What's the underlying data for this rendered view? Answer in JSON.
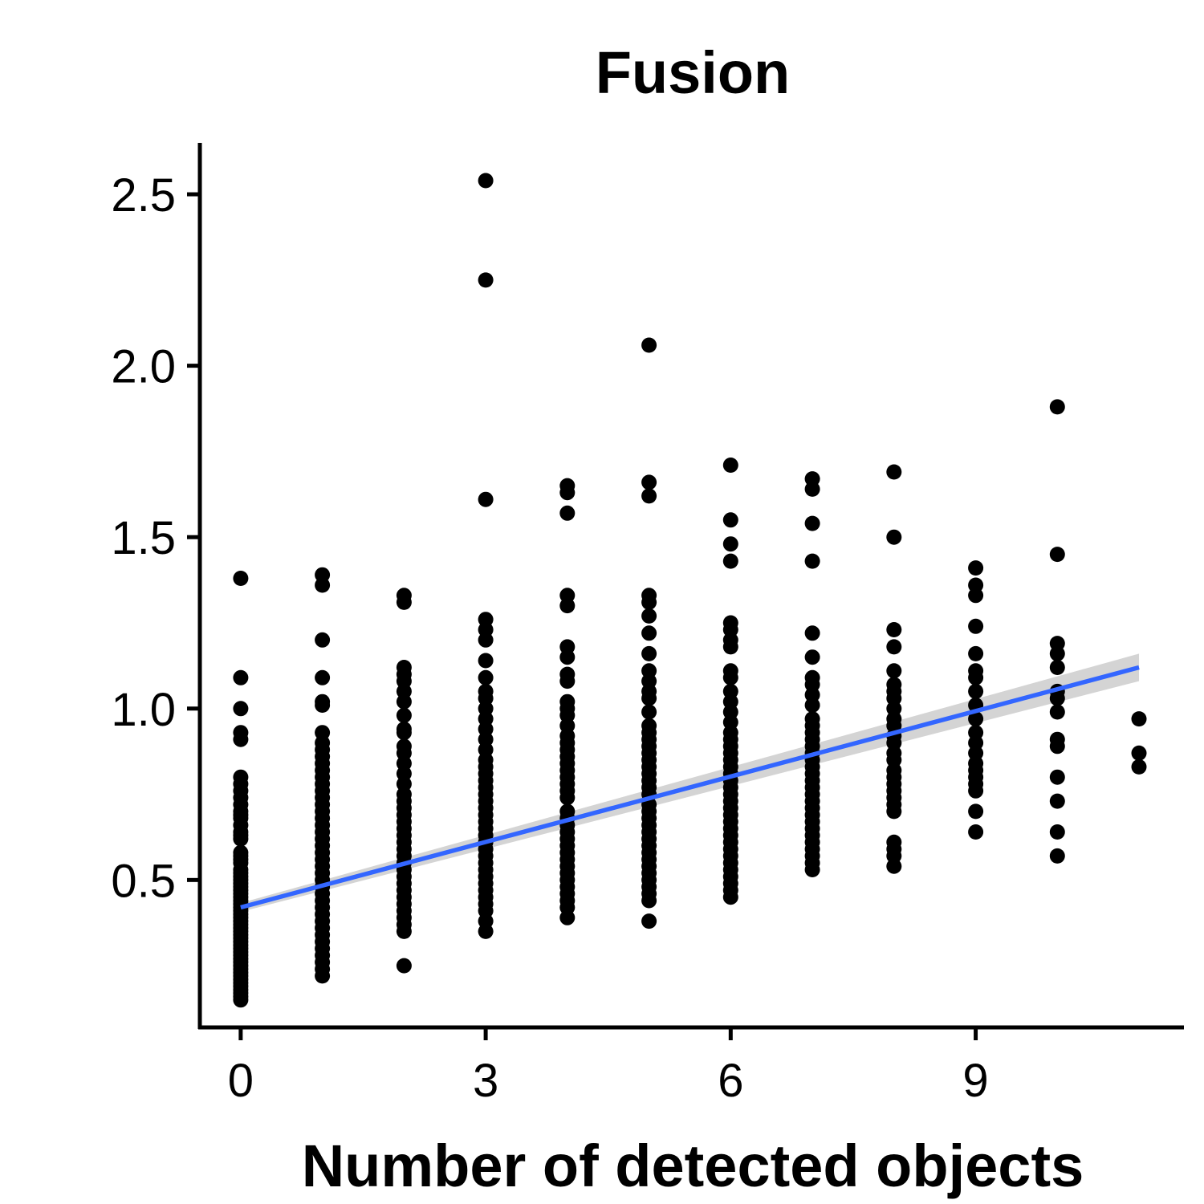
{
  "chart_data": {
    "type": "scatter",
    "title": "Fusion",
    "xlabel": "Number of detected objects",
    "ylabel": "",
    "xlim": [
      -0.5,
      11.55
    ],
    "ylim": [
      0.07,
      2.65
    ],
    "x_ticks": [
      0,
      3,
      6,
      9
    ],
    "x_tick_labels": [
      "0",
      "3",
      "6",
      "9"
    ],
    "y_ticks": [
      0.5,
      1.0,
      1.5,
      2.0,
      2.5
    ],
    "y_tick_labels": [
      "0.5",
      "1.0",
      "1.5",
      "2.0",
      "2.5"
    ],
    "grid": false,
    "legend": "none",
    "colors": {
      "points": "#000000",
      "trend_line": "#3366FF",
      "confidence_band": "#CCCCCC",
      "axis": "#000000"
    },
    "groups": [
      {
        "x": 0,
        "y": [
          1.38,
          1.09,
          1.0,
          0.93,
          0.91,
          0.8,
          0.78,
          0.76,
          0.74,
          0.72,
          0.7,
          0.69,
          0.68,
          0.66,
          0.64,
          0.63,
          0.62,
          0.58,
          0.57,
          0.56,
          0.55,
          0.53,
          0.52,
          0.51,
          0.5,
          0.49,
          0.48,
          0.47,
          0.46,
          0.45,
          0.44,
          0.43,
          0.42,
          0.41,
          0.4,
          0.39,
          0.38,
          0.37,
          0.36,
          0.35,
          0.34,
          0.33,
          0.32,
          0.31,
          0.3,
          0.29,
          0.28,
          0.27,
          0.26,
          0.25,
          0.24,
          0.23,
          0.22,
          0.21,
          0.2,
          0.19,
          0.18,
          0.17,
          0.16,
          0.15
        ]
      },
      {
        "x": 1,
        "y": [
          1.39,
          1.36,
          1.2,
          1.09,
          1.02,
          1.01,
          0.93,
          0.9,
          0.88,
          0.86,
          0.84,
          0.82,
          0.8,
          0.78,
          0.76,
          0.74,
          0.72,
          0.7,
          0.68,
          0.66,
          0.64,
          0.62,
          0.6,
          0.58,
          0.56,
          0.54,
          0.52,
          0.5,
          0.48,
          0.46,
          0.44,
          0.42,
          0.4,
          0.38,
          0.36,
          0.34,
          0.32,
          0.3,
          0.28,
          0.26,
          0.24,
          0.22
        ]
      },
      {
        "x": 2,
        "y": [
          1.33,
          1.31,
          1.12,
          1.1,
          1.08,
          1.05,
          1.02,
          0.98,
          0.94,
          0.93,
          0.89,
          0.87,
          0.84,
          0.81,
          0.78,
          0.75,
          0.73,
          0.71,
          0.69,
          0.67,
          0.65,
          0.63,
          0.61,
          0.59,
          0.57,
          0.55,
          0.53,
          0.51,
          0.49,
          0.47,
          0.45,
          0.43,
          0.41,
          0.39,
          0.37,
          0.35,
          0.25
        ]
      },
      {
        "x": 3,
        "y": [
          2.54,
          2.25,
          1.61,
          1.26,
          1.23,
          1.2,
          1.14,
          1.09,
          1.05,
          1.03,
          1.0,
          0.97,
          0.94,
          0.91,
          0.88,
          0.85,
          0.83,
          0.81,
          0.79,
          0.77,
          0.75,
          0.73,
          0.71,
          0.69,
          0.67,
          0.65,
          0.63,
          0.61,
          0.59,
          0.57,
          0.55,
          0.53,
          0.51,
          0.49,
          0.47,
          0.45,
          0.43,
          0.41,
          0.38,
          0.35
        ]
      },
      {
        "x": 4,
        "y": [
          1.65,
          1.63,
          1.57,
          1.33,
          1.3,
          1.18,
          1.15,
          1.1,
          1.08,
          1.02,
          1.0,
          0.98,
          0.95,
          0.92,
          0.9,
          0.88,
          0.86,
          0.84,
          0.82,
          0.8,
          0.78,
          0.76,
          0.74,
          0.7,
          0.68,
          0.66,
          0.64,
          0.62,
          0.6,
          0.58,
          0.56,
          0.54,
          0.52,
          0.5,
          0.48,
          0.46,
          0.44,
          0.42,
          0.39
        ]
      },
      {
        "x": 5,
        "y": [
          2.06,
          1.66,
          1.62,
          1.33,
          1.31,
          1.27,
          1.22,
          1.16,
          1.11,
          1.08,
          1.05,
          1.03,
          0.99,
          0.95,
          0.93,
          0.91,
          0.89,
          0.87,
          0.85,
          0.83,
          0.81,
          0.79,
          0.77,
          0.75,
          0.72,
          0.7,
          0.68,
          0.66,
          0.64,
          0.62,
          0.6,
          0.58,
          0.56,
          0.54,
          0.52,
          0.5,
          0.48,
          0.46,
          0.44,
          0.38
        ]
      },
      {
        "x": 6,
        "y": [
          1.71,
          1.55,
          1.48,
          1.43,
          1.25,
          1.23,
          1.2,
          1.18,
          1.11,
          1.09,
          1.05,
          1.02,
          0.99,
          0.96,
          0.93,
          0.91,
          0.89,
          0.87,
          0.85,
          0.83,
          0.81,
          0.79,
          0.77,
          0.75,
          0.73,
          0.71,
          0.69,
          0.67,
          0.65,
          0.63,
          0.61,
          0.59,
          0.57,
          0.55,
          0.53,
          0.51,
          0.49,
          0.47,
          0.45
        ]
      },
      {
        "x": 7,
        "y": [
          1.67,
          1.64,
          1.54,
          1.43,
          1.22,
          1.15,
          1.09,
          1.07,
          1.04,
          1.01,
          0.97,
          0.95,
          0.93,
          0.91,
          0.89,
          0.87,
          0.85,
          0.83,
          0.81,
          0.79,
          0.77,
          0.75,
          0.73,
          0.71,
          0.69,
          0.67,
          0.65,
          0.63,
          0.61,
          0.59,
          0.57,
          0.55,
          0.53
        ]
      },
      {
        "x": 8,
        "y": [
          1.69,
          1.5,
          1.23,
          1.18,
          1.11,
          1.07,
          1.05,
          1.03,
          1.0,
          0.97,
          0.95,
          0.92,
          0.9,
          0.87,
          0.85,
          0.82,
          0.8,
          0.78,
          0.76,
          0.74,
          0.72,
          0.7,
          0.61,
          0.59,
          0.57,
          0.54
        ]
      },
      {
        "x": 9,
        "y": [
          1.41,
          1.36,
          1.33,
          1.24,
          1.16,
          1.11,
          1.09,
          1.05,
          1.01,
          0.97,
          0.93,
          0.9,
          0.87,
          0.84,
          0.82,
          0.8,
          0.78,
          0.76,
          0.7,
          0.64
        ]
      },
      {
        "x": 10,
        "y": [
          1.88,
          1.45,
          1.19,
          1.16,
          1.12,
          1.05,
          1.03,
          0.99,
          0.91,
          0.89,
          0.8,
          0.73,
          0.64,
          0.57
        ]
      },
      {
        "x": 11,
        "y": [
          0.97,
          0.87,
          0.83
        ]
      }
    ],
    "trend_line": {
      "method": "linear",
      "x_start": 0,
      "y_start": 0.42,
      "x_end": 11,
      "y_end": 1.12,
      "ci_halfwidth_start": 0.013,
      "ci_halfwidth_end": 0.04
    }
  }
}
